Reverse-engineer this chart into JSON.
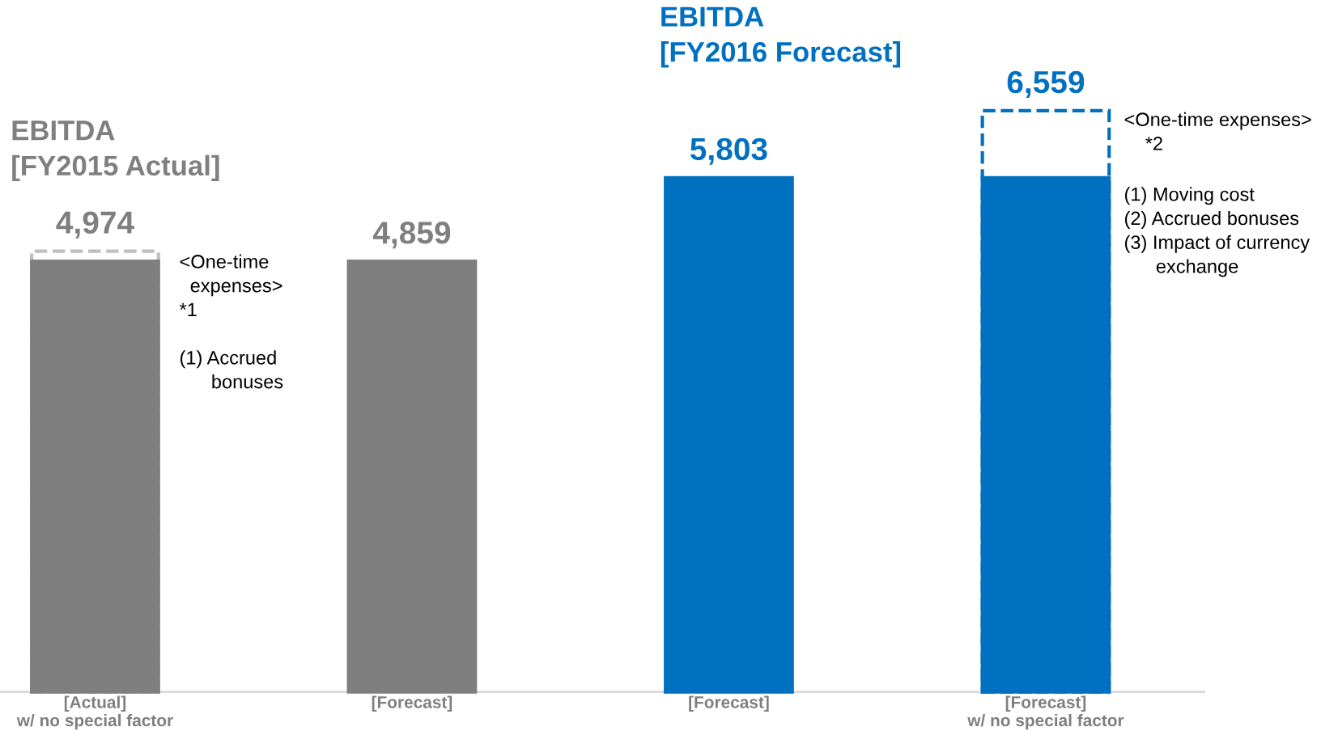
{
  "chart_data": {
    "type": "bar",
    "categories": [
      "[Actual]\nw/ no special factor",
      "[Forecast]",
      "[Forecast]",
      "[Forecast]\nw/ no special factor"
    ],
    "series": [
      {
        "colors": [
          "#bfbfbf",
          "#bfbfbf",
          "#0070c0",
          "#0070c0"
        ],
        "values": [
          4974,
          null,
          null,
          6559
        ],
        "line_style": "dashed",
        "value_labels": [
          "4,974",
          null,
          null,
          "6,559"
        ]
      },
      {
        "colors": [
          "#7f7f7f",
          "#7f7f7f",
          "#0070c0",
          "#0070c0"
        ],
        "values": [
          4859,
          4859,
          5803,
          5803
        ],
        "value_labels": [
          null,
          "4,859",
          "5,803",
          null
        ]
      }
    ],
    "tick_labels": "x",
    "annotations": [
      "EBITDA\n[FY2015 Actual]",
      "EBITDA\n[FY2016 Forecast]",
      "<One-time\n  expenses>\n*1\n\n(1) Accrued\n      bonuses",
      "<One-time expenses>\n    *2",
      "(1) Moving cost\n(2) Accrued bonuses\n(3) Impact of currency\n      exchange"
    ]
  }
}
